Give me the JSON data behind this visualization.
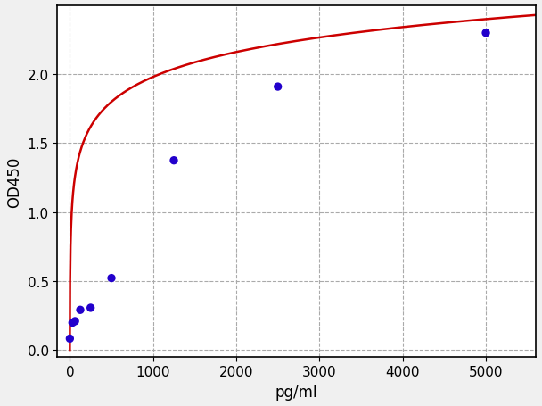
{
  "x_data": [
    0,
    31.25,
    62.5,
    125,
    250,
    500,
    1250,
    2500,
    5000
  ],
  "y_data": [
    0.082,
    0.197,
    0.208,
    0.29,
    0.305,
    0.521,
    1.375,
    1.91,
    2.3
  ],
  "dot_color": "#2200CC",
  "line_color": "#CC0000",
  "xlabel": "pg/ml",
  "ylabel": "OD450",
  "xlim": [
    -150,
    5600
  ],
  "ylim": [
    -0.05,
    2.5
  ],
  "xticks": [
    0,
    1000,
    2000,
    3000,
    4000,
    5000
  ],
  "yticks": [
    0.0,
    0.5,
    1.0,
    1.5,
    2.0
  ],
  "bg_color": "#f0f0f0",
  "plot_bg_color": "#ffffff",
  "grid_color": "#aaaaaa",
  "dot_size": 45,
  "line_width": 1.8,
  "xlabel_fontsize": 12,
  "ylabel_fontsize": 12,
  "tick_fontsize": 11
}
